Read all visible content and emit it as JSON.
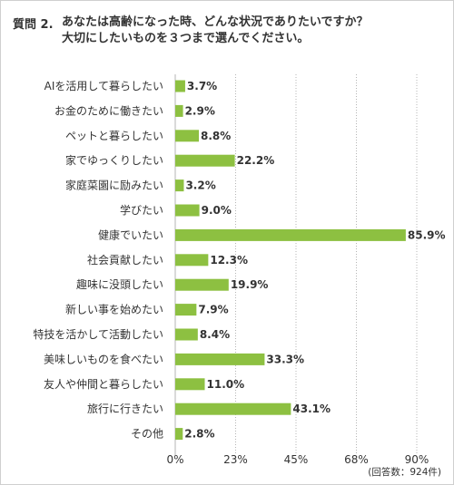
{
  "question": {
    "label": "質問 2.",
    "line1": "あなたは高齢になった時、どんな状況でありたいですか？",
    "line2": "大切にしたいものを３つまで選んでください。"
  },
  "note": "(回答数：924件)",
  "chart_data": {
    "type": "bar",
    "orientation": "horizontal",
    "categories": [
      "AIを活用して暮らしたい",
      "お金のために働きたい",
      "ペットと暮らしたい",
      "家でゆっくりしたい",
      "家庭菜園に励みたい",
      "学びたい",
      "健康でいたい",
      "社会貢献したい",
      "趣味に没頭したい",
      "新しい事を始めたい",
      "特技を活かして活動したい",
      "美味しいものを食べたい",
      "友人や仲間と暮らしたい",
      "旅行に行きたい",
      "その他"
    ],
    "values": [
      3.7,
      2.9,
      8.8,
      22.2,
      3.2,
      9.0,
      85.9,
      12.3,
      19.9,
      7.9,
      8.4,
      33.3,
      11.0,
      43.1,
      2.8
    ],
    "value_labels": [
      "3.7%",
      "2.9%",
      "8.8%",
      "22.2%",
      "3.2%",
      "9.0%",
      "85.9%",
      "12.3%",
      "19.9%",
      "7.9%",
      "8.4%",
      "33.3%",
      "11.0%",
      "43.1%",
      "2.8%"
    ],
    "ticks": [
      0,
      22.5,
      45,
      67.5,
      90
    ],
    "tick_labels": [
      "0%",
      "23%",
      "45%",
      "68%",
      "90%"
    ],
    "xlim": [
      0,
      90
    ],
    "grid": "dotted-vertical",
    "bar_color": "#8dc041"
  }
}
